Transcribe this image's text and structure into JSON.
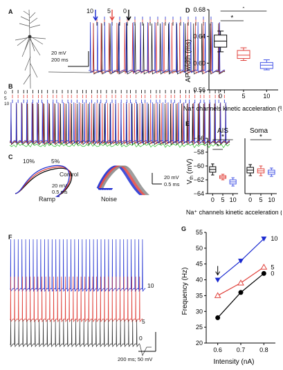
{
  "panels": {
    "A": {
      "label": "A",
      "scalebar_v": "20 mV",
      "scalebar_h": "200 ms",
      "stim_labels": [
        "10",
        "5",
        "0"
      ]
    },
    "B": {
      "label": "B",
      "row_labels": [
        "0",
        "5",
        "10"
      ]
    },
    "C": {
      "label": "C",
      "curve_labels": [
        "10%",
        "5%",
        "Control"
      ],
      "ramp_label": "Ramp",
      "noise_label": "Noise",
      "scale1_v": "20 mV",
      "scale1_h": "0.5 ms",
      "scale2_v": "20 mV",
      "scale2_h": "0.5 ms"
    },
    "D": {
      "label": "D"
    },
    "E": {
      "label": "E"
    },
    "F": {
      "label": "F",
      "trace_labels": [
        "10",
        "5",
        "0"
      ],
      "scalebar": "200 ms; 50 mV"
    },
    "G": {
      "label": "G"
    }
  },
  "chart_data": [
    {
      "panel": "D",
      "type": "box",
      "ylabel": "AP width (ms)",
      "xlabel": "Na⁺ channels kinetic acceleration (%)",
      "categories": [
        "0",
        "5",
        "10"
      ],
      "ylim": [
        0.56,
        0.68
      ],
      "yticks": [
        "0.56",
        "0.60",
        "0.64",
        "0.68"
      ],
      "colors": [
        "#000000",
        "#e0403a",
        "#4455e6"
      ],
      "boxes": [
        {
          "whisker_low": 0.617,
          "q1": 0.624,
          "median": 0.633,
          "q3": 0.642,
          "whisker_high": 0.648
        },
        {
          "whisker_low": 0.604,
          "q1": 0.607,
          "median": 0.612,
          "q3": 0.619,
          "whisker_high": 0.623
        },
        {
          "whisker_low": 0.59,
          "q1": 0.592,
          "median": 0.597,
          "q3": 0.601,
          "whisker_high": 0.605
        }
      ],
      "significance": [
        {
          "from": "0",
          "to": "5",
          "label": "*"
        },
        {
          "from": "0",
          "to": "10",
          "label": "*"
        }
      ]
    },
    {
      "panel": "E",
      "type": "box",
      "ylabel": "V_th (mV)",
      "xlabel": "Na⁺ channels kinetic acceleration (%)",
      "subtitles": [
        "AIS",
        "Soma"
      ],
      "categories": [
        "0",
        "5",
        "10"
      ],
      "ylim": [
        -64,
        -56
      ],
      "yticks": [
        "−56",
        "−58",
        "−60",
        "−62",
        "−64"
      ],
      "colors": [
        "#000000",
        "#e0403a",
        "#4455e6"
      ],
      "groups": [
        {
          "name": "AIS",
          "boxes": [
            {
              "whisker_low": -61.3,
              "q1": -60.9,
              "median": -60.5,
              "q3": -60.1,
              "whisker_high": -59.7
            },
            {
              "whisker_low": -62.0,
              "q1": -61.8,
              "median": -61.6,
              "q3": -61.4,
              "whisker_high": -61.2
            },
            {
              "whisker_low": -62.9,
              "q1": -62.6,
              "median": -62.3,
              "q3": -62.0,
              "whisker_high": -61.7
            }
          ],
          "significance": [
            {
              "from": "0",
              "to": "5",
              "label": "*"
            },
            {
              "from": "0",
              "to": "10",
              "label": "*"
            }
          ]
        },
        {
          "name": "Soma",
          "boxes": [
            {
              "whisker_low": -61.4,
              "q1": -61.0,
              "median": -60.6,
              "q3": -60.2,
              "whisker_high": -59.8
            },
            {
              "whisker_low": -61.4,
              "q1": -61.0,
              "median": -60.7,
              "q3": -60.4,
              "whisker_high": -60.0
            },
            {
              "whisker_low": -61.5,
              "q1": -61.2,
              "median": -60.9,
              "q3": -60.6,
              "whisker_high": -60.3
            }
          ],
          "significance": [
            {
              "from": "0",
              "to": "10",
              "label": "*"
            }
          ]
        }
      ]
    },
    {
      "panel": "G",
      "type": "line",
      "xlabel": "Intensity (nA)",
      "ylabel": "Frequency (Hz)",
      "x": [
        0.6,
        0.7,
        0.8
      ],
      "xticks": [
        "0.6",
        "0.7",
        "0.8"
      ],
      "xlim": [
        0.55,
        0.85
      ],
      "ylim": [
        20,
        55
      ],
      "yticks": [
        "20",
        "25",
        "30",
        "35",
        "40",
        "45",
        "50",
        "55"
      ],
      "series": [
        {
          "name": "10",
          "color": "#1a2ad0",
          "marker": "triangle-down-filled",
          "values": [
            40,
            46,
            53
          ]
        },
        {
          "name": "5",
          "color": "#e0403a",
          "marker": "triangle-up-open",
          "values": [
            35,
            39,
            44
          ]
        },
        {
          "name": "0",
          "color": "#000000",
          "marker": "circle-filled",
          "values": [
            28,
            36,
            42
          ]
        }
      ]
    }
  ]
}
